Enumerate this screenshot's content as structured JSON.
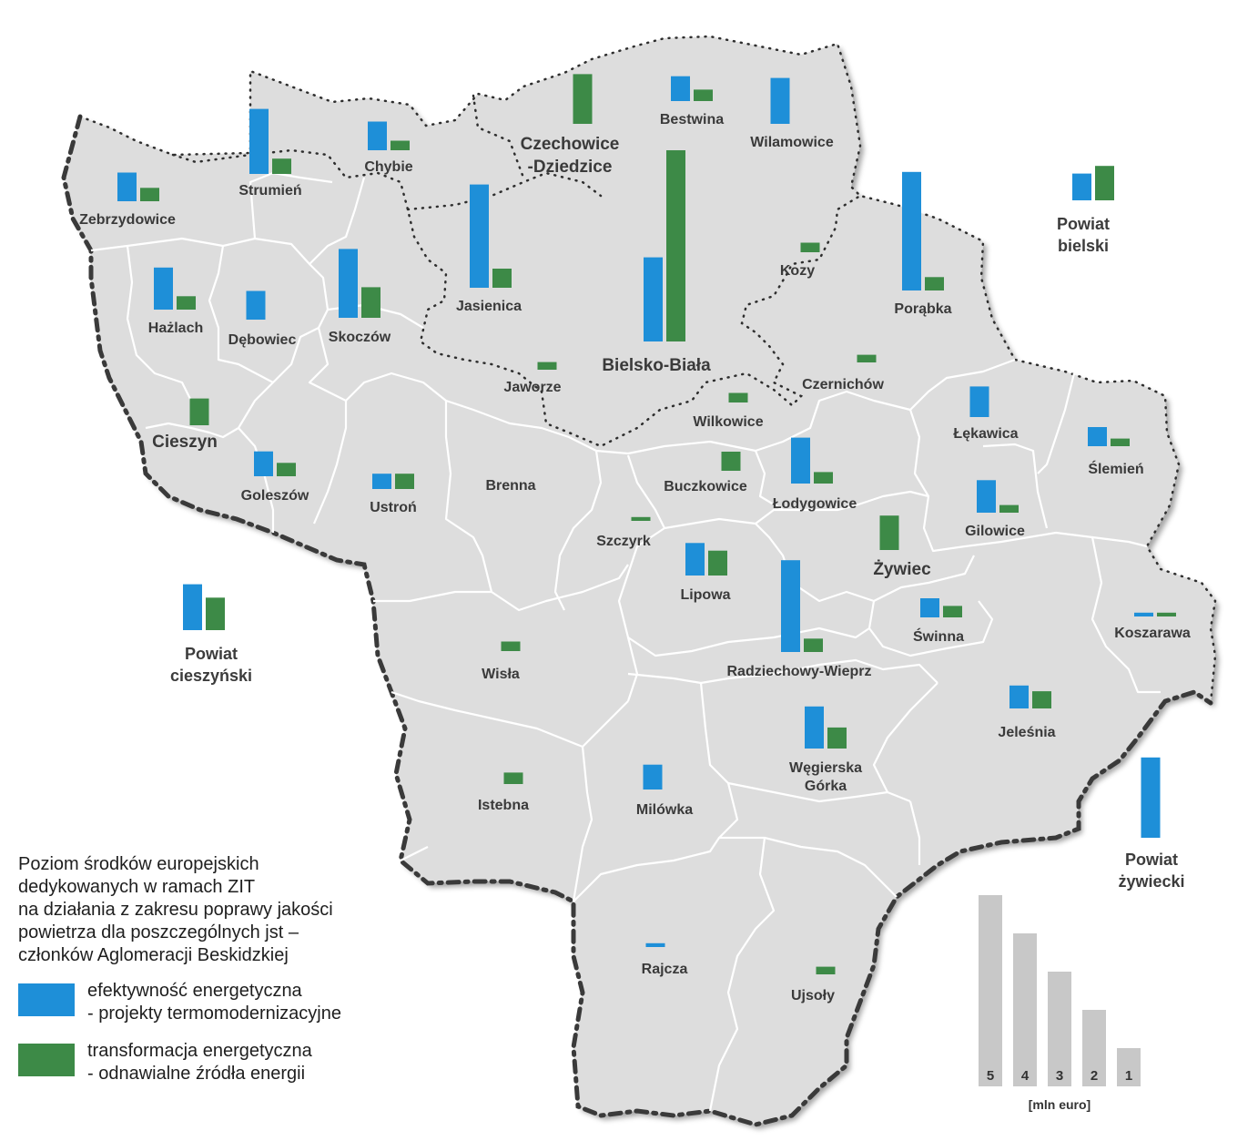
{
  "colors": {
    "efficiency": "#1e8fd8",
    "transformation": "#3d8a47",
    "land": "#dddddd",
    "scale_bar": "#c8c8c8"
  },
  "legend": {
    "title_lines": [
      "Poziom środków europejskich",
      "dedykowanych w ramach ZIT",
      "na działania z zakresu poprawy jakości",
      "powietrza dla poszczególnych jst –",
      "członków Aglomeracji Beskidzkiej"
    ],
    "items": [
      {
        "name": "efficiency",
        "lines": [
          "efektywność energetyczna",
          "- projekty termomodernizacyjne"
        ]
      },
      {
        "name": "transformation",
        "lines": [
          "transformacja energetyczna",
          "- odnawialne źródła energii"
        ]
      }
    ]
  },
  "scale": {
    "unit": "[mln euro]",
    "values": [
      5,
      4,
      3,
      2,
      1
    ],
    "labels": [
      "5",
      "4",
      "3",
      "2",
      "1"
    ]
  },
  "places": [
    {
      "name": "Zebrzydowice",
      "efficiency": 0.75,
      "transformation": 0.35
    },
    {
      "name": "Strumień",
      "efficiency": 1.7,
      "transformation": 0.4
    },
    {
      "name": "Chybie",
      "efficiency": 0.75,
      "transformation": 0.25
    },
    {
      "name": "Czechowice-Dziedzice",
      "lines": [
        "Czechowice",
        "-Dziedzice"
      ],
      "efficiency": 0,
      "transformation": 1.3
    },
    {
      "name": "Bestwina",
      "efficiency": 0.65,
      "transformation": 0.3
    },
    {
      "name": "Wilamowice",
      "efficiency": 1.2,
      "transformation": 0
    },
    {
      "name": "Hażlach",
      "efficiency": 1.1,
      "transformation": 0.35
    },
    {
      "name": "Dębowiec",
      "efficiency": 0.75,
      "transformation": 0
    },
    {
      "name": "Skoczów",
      "efficiency": 1.8,
      "transformation": 0.8
    },
    {
      "name": "Jasienica",
      "efficiency": 2.7,
      "transformation": 0.5
    },
    {
      "name": "Bielsko-Biała",
      "efficiency": 2.2,
      "transformation": 5.0
    },
    {
      "name": "Kozy",
      "efficiency": 0,
      "transformation": 0.25
    },
    {
      "name": "Porąbka",
      "efficiency": 3.1,
      "transformation": 0.35
    },
    {
      "name": "Jaworze",
      "efficiency": 0,
      "transformation": 0.2
    },
    {
      "name": "Czernichów",
      "efficiency": 0,
      "transformation": 0.2
    },
    {
      "name": "Wilkowice",
      "efficiency": 0,
      "transformation": 0.25
    },
    {
      "name": "Cieszyn",
      "efficiency": 0,
      "transformation": 0.7
    },
    {
      "name": "Goleszów",
      "efficiency": 0.65,
      "transformation": 0.35
    },
    {
      "name": "Ustroń",
      "efficiency": 0.4,
      "transformation": 0.4
    },
    {
      "name": "Brenna",
      "efficiency": 0,
      "transformation": 0
    },
    {
      "name": "Buczkowice",
      "efficiency": 0,
      "transformation": 0.5
    },
    {
      "name": "Łodygowice",
      "efficiency": 1.2,
      "transformation": 0.3
    },
    {
      "name": "Łękawica",
      "efficiency": 0.8,
      "transformation": 0
    },
    {
      "name": "Ślemień",
      "efficiency": 0.5,
      "transformation": 0.2
    },
    {
      "name": "Gilowice",
      "efficiency": 0.85,
      "transformation": 0.2
    },
    {
      "name": "Szczyrk",
      "efficiency": 0,
      "transformation": 0.1
    },
    {
      "name": "Lipowa",
      "efficiency": 0.85,
      "transformation": 0.65
    },
    {
      "name": "Żywiec",
      "efficiency": 0,
      "transformation": 0.9
    },
    {
      "name": "Świnna",
      "efficiency": 0.5,
      "transformation": 0.3
    },
    {
      "name": "Koszarawa",
      "efficiency": 0.1,
      "transformation": 0.1
    },
    {
      "name": "Radziechowy-Wieprz",
      "efficiency": 2.4,
      "transformation": 0.35
    },
    {
      "name": "Wisła",
      "efficiency": 0,
      "transformation": 0.25
    },
    {
      "name": "Jeleśnia",
      "efficiency": 0.6,
      "transformation": 0.45
    },
    {
      "name": "Węgierska Górka",
      "lines": [
        "Węgierska",
        "Górka"
      ],
      "efficiency": 1.1,
      "transformation": 0.55
    },
    {
      "name": "Istebna",
      "efficiency": 0,
      "transformation": 0.3
    },
    {
      "name": "Milówka",
      "efficiency": 0.65,
      "transformation": 0
    },
    {
      "name": "Rajcza",
      "efficiency": 0.1,
      "transformation": 0
    },
    {
      "name": "Ujsoły",
      "efficiency": 0,
      "transformation": 0.2
    }
  ],
  "counties": [
    {
      "name": "Powiat bielski",
      "lines": [
        "Powiat",
        "bielski"
      ],
      "efficiency": 0.7,
      "transformation": 0.9
    },
    {
      "name": "Powiat cieszyński",
      "lines": [
        "Powiat",
        "cieszyński"
      ],
      "efficiency": 1.2,
      "transformation": 0.85
    },
    {
      "name": "Powiat żywiecki",
      "lines": [
        "Powiat",
        "żywiecki"
      ],
      "efficiency": 2.1,
      "transformation": 0
    }
  ]
}
